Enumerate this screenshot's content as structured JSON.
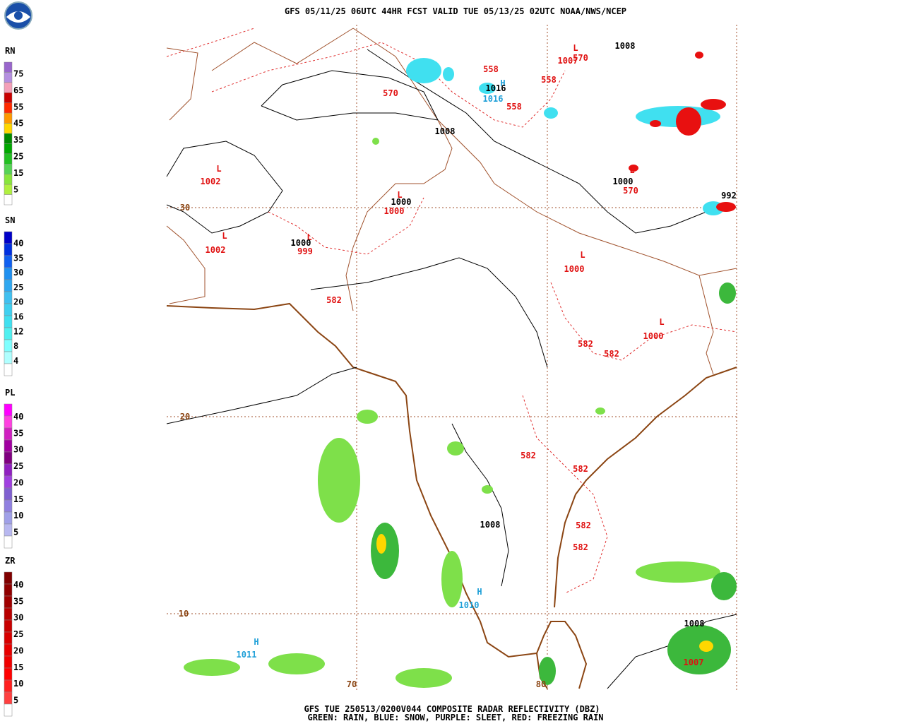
{
  "header": {
    "title": "GFS 05/11/25 06UTC 44HR FCST VALID TUE 05/13/25 02UTC NOAA/NWS/NCEP"
  },
  "footer": {
    "line1": "GFS TUE 250513/0200V044 COMPOSITE RADAR REFLECTIVITY (DBZ)",
    "line2": "GREEN: RAIN, BLUE: SNOW, PURPLE: SLEET, RED: FREEZING RAIN"
  },
  "legends": [
    {
      "label": "RN",
      "ticks": [
        "75",
        "65",
        "55",
        "45",
        "35",
        "25",
        "15",
        "5"
      ],
      "colors": [
        "#9966cc",
        "#b48fe0",
        "#f4a0b8",
        "#c80000",
        "#ff2a00",
        "#ff9900",
        "#ffd700",
        "#008a00",
        "#00a800",
        "#22c022",
        "#55d455",
        "#88e63c",
        "#b0f040",
        "#ffffff"
      ]
    },
    {
      "label": "SN",
      "ticks": [
        "40",
        "35",
        "30",
        "25",
        "20",
        "16",
        "12",
        "8",
        "4"
      ],
      "colors": [
        "#0000c8",
        "#0030e0",
        "#1060f0",
        "#2090f0",
        "#30a8f0",
        "#40c0f0",
        "#40d0f0",
        "#40e0f0",
        "#50f0f0",
        "#80ffff",
        "#b0ffff",
        "#ffffff"
      ]
    },
    {
      "label": "PL",
      "ticks": [
        "40",
        "35",
        "30",
        "25",
        "20",
        "15",
        "10",
        "5"
      ],
      "colors": [
        "#ff00ff",
        "#ff40e0",
        "#d020c0",
        "#a000a0",
        "#800080",
        "#9020c0",
        "#a040e0",
        "#8060d0",
        "#9080e0",
        "#a0a0e8",
        "#b8b8f0",
        "#ffffff"
      ]
    },
    {
      "label": "ZR",
      "ticks": [
        "40",
        "35",
        "30",
        "25",
        "20",
        "15",
        "10",
        "5"
      ],
      "colors": [
        "#800000",
        "#900000",
        "#a00000",
        "#b80000",
        "#c80000",
        "#d80000",
        "#e80000",
        "#f00000",
        "#ff0000",
        "#ff2020",
        "#ff4040",
        "#ffffff"
      ]
    }
  ],
  "map": {
    "labels": [
      "L",
      "570",
      "1008",
      "1007",
      "558",
      "H",
      "1016",
      "1016",
      "558",
      "570",
      "558",
      "1008",
      "L",
      "1002",
      "L",
      "1000",
      "1000",
      "30",
      "L",
      "1002",
      "L",
      "1000",
      "999",
      "L",
      "1000",
      "570",
      "992",
      "L",
      "1000",
      "582",
      "L",
      "1000",
      "582",
      "582",
      "20",
      "582",
      "582",
      "1008",
      "582",
      "582",
      "H",
      "1010",
      "10",
      "1008",
      "H",
      "1011",
      "1007",
      "70",
      "80"
    ]
  }
}
